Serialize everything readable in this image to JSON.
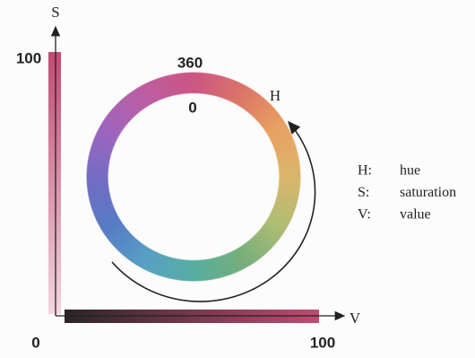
{
  "axes": {
    "s": {
      "label": "S",
      "max_label": "100"
    },
    "v": {
      "label": "V",
      "min_label": "0",
      "max_label": "100"
    }
  },
  "hue_ring": {
    "top_label": "360",
    "start_label": "0",
    "arrow_label": "H"
  },
  "legend": [
    {
      "key": "H:",
      "text": "hue"
    },
    {
      "key": "S:",
      "text": "saturation"
    },
    {
      "key": "V:",
      "text": "value"
    }
  ]
}
